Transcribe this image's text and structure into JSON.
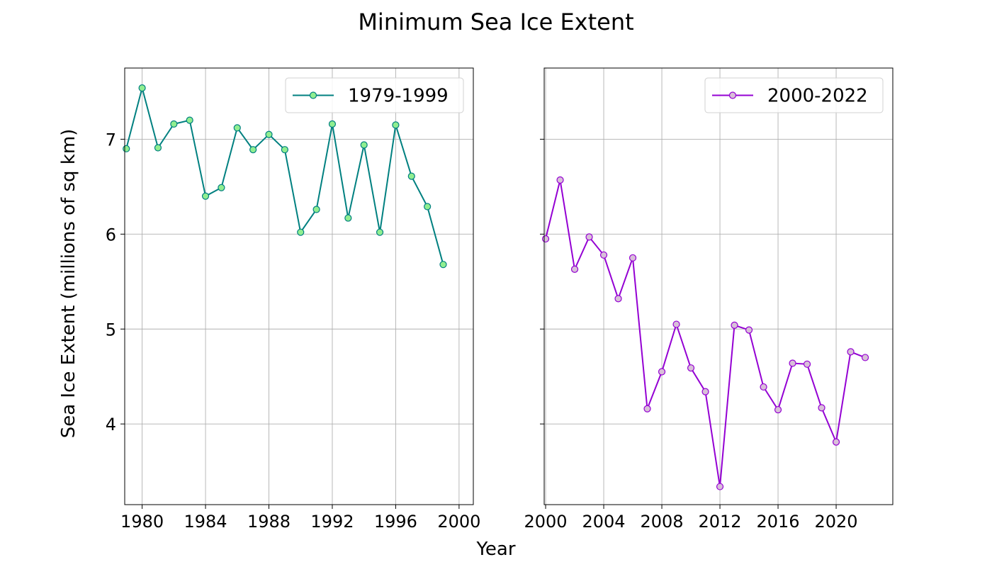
{
  "chart_data": {
    "type": "line",
    "title": "Minimum Sea Ice Extent",
    "xlabel": "Year",
    "ylabel": "Sea Ice Extent (millions of sq km)",
    "ylim": [
      3.15,
      7.75
    ],
    "yticks": [
      4,
      5,
      6,
      7
    ],
    "sharey": true,
    "grid": true,
    "panels": [
      {
        "xlim": [
          1978.9,
          2000.9
        ],
        "xticks": [
          1980,
          1984,
          1988,
          1992,
          1996,
          2000
        ],
        "legend_position": "upper right",
        "series": [
          {
            "name": "1979-1999",
            "line_color": "#008080",
            "marker_face": "#90ee90",
            "x": [
              1979,
              1980,
              1981,
              1982,
              1983,
              1984,
              1985,
              1986,
              1987,
              1988,
              1989,
              1990,
              1991,
              1992,
              1993,
              1994,
              1995,
              1996,
              1997,
              1998,
              1999
            ],
            "y": [
              6.9,
              7.54,
              6.91,
              7.16,
              7.2,
              6.4,
              6.49,
              7.12,
              6.89,
              7.05,
              6.89,
              6.02,
              6.26,
              7.16,
              6.17,
              6.94,
              6.02,
              7.15,
              6.61,
              6.29,
              5.68
            ]
          }
        ]
      },
      {
        "xlim": [
          1999.9,
          2023.9
        ],
        "xticks": [
          2000,
          2004,
          2008,
          2012,
          2016,
          2020
        ],
        "legend_position": "upper right",
        "series": [
          {
            "name": "2000-2022",
            "line_color": "#9400d3",
            "marker_face": "#d8bfd8",
            "x": [
              2000,
              2001,
              2002,
              2003,
              2004,
              2005,
              2006,
              2007,
              2008,
              2009,
              2010,
              2011,
              2012,
              2013,
              2014,
              2015,
              2016,
              2017,
              2018,
              2019,
              2020,
              2021,
              2022
            ],
            "y": [
              5.95,
              6.57,
              5.63,
              5.97,
              5.78,
              5.32,
              5.75,
              4.16,
              4.55,
              5.05,
              4.59,
              4.34,
              3.34,
              5.04,
              4.99,
              4.39,
              4.15,
              4.64,
              4.63,
              4.17,
              3.81,
              4.76,
              4.7
            ]
          }
        ]
      }
    ]
  }
}
